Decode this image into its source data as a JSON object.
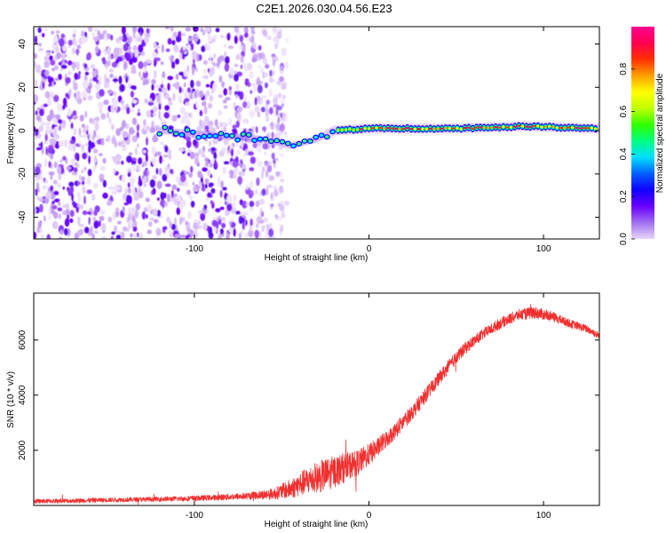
{
  "figure_title": "C2E1.2026.030.04.56.E23",
  "chart_data": [
    {
      "type": "heatmap",
      "title": "C2E1.2026.030.04.56.E23",
      "xlabel": "Height of straight line (km)",
      "ylabel": "Frequency (Hz)",
      "xlim": [
        -192,
        132
      ],
      "ylim": [
        -50,
        48
      ],
      "xticks": [
        -100,
        0,
        100
      ],
      "yticks": [
        -40,
        -20,
        0,
        20,
        40
      ],
      "colorbar": {
        "label": "Normalized spectral amplitude",
        "range": [
          0,
          1
        ],
        "ticks": [
          "0.0",
          "0.2",
          "0.4",
          "0.6",
          "0.8"
        ],
        "colormap": [
          "#e8d4f8",
          "#a070f0",
          "#6a00ff",
          "#1000ff",
          "#0060ff",
          "#00e0ff",
          "#00ff80",
          "#30ff00",
          "#c0ff00",
          "#ffff00",
          "#ffa000",
          "#ff3000",
          "#ff0050",
          "#ff0090"
        ]
      },
      "features": {
        "noise_region_x": [
          -192,
          -55
        ],
        "signal_track": [
          {
            "x": -120,
            "freq": 0
          },
          {
            "x": -90,
            "freq": -2
          },
          {
            "x": -60,
            "freq": -4
          },
          {
            "x": -45,
            "freq": -7
          },
          {
            "x": -30,
            "freq": -4
          },
          {
            "x": -20,
            "freq": 0
          },
          {
            "x": 0,
            "freq": 1
          },
          {
            "x": 50,
            "freq": 1
          },
          {
            "x": 90,
            "freq": 2
          },
          {
            "x": 132,
            "freq": 1
          }
        ]
      }
    },
    {
      "type": "line",
      "xlabel": "Height of straight line (km)",
      "ylabel": "SNR (10 * v/v)",
      "xlim": [
        -192,
        132
      ],
      "ylim": [
        0,
        7700
      ],
      "xticks": [
        -100,
        0,
        100
      ],
      "yticks": [
        2000,
        4000,
        6000
      ],
      "color": "#f03030",
      "series": [
        {
          "name": "SNR",
          "x": [
            -192,
            -170,
            -150,
            -130,
            -110,
            -90,
            -70,
            -55,
            -45,
            -35,
            -25,
            -15,
            -5,
            5,
            15,
            25,
            35,
            45,
            55,
            65,
            75,
            85,
            95,
            105,
            115,
            125,
            132
          ],
          "y": [
            150,
            170,
            200,
            220,
            240,
            280,
            340,
            420,
            600,
            900,
            1100,
            1350,
            1600,
            2100,
            2700,
            3400,
            4200,
            5000,
            5700,
            6200,
            6600,
            6900,
            7000,
            6850,
            6600,
            6400,
            6150
          ],
          "noise_amplitude": [
            80,
            80,
            80,
            80,
            90,
            100,
            120,
            200,
            350,
            500,
            600,
            550,
            450,
            350,
            300,
            280,
            260,
            240,
            220,
            200,
            200,
            200,
            220,
            180,
            150,
            140,
            130
          ]
        }
      ]
    }
  ]
}
